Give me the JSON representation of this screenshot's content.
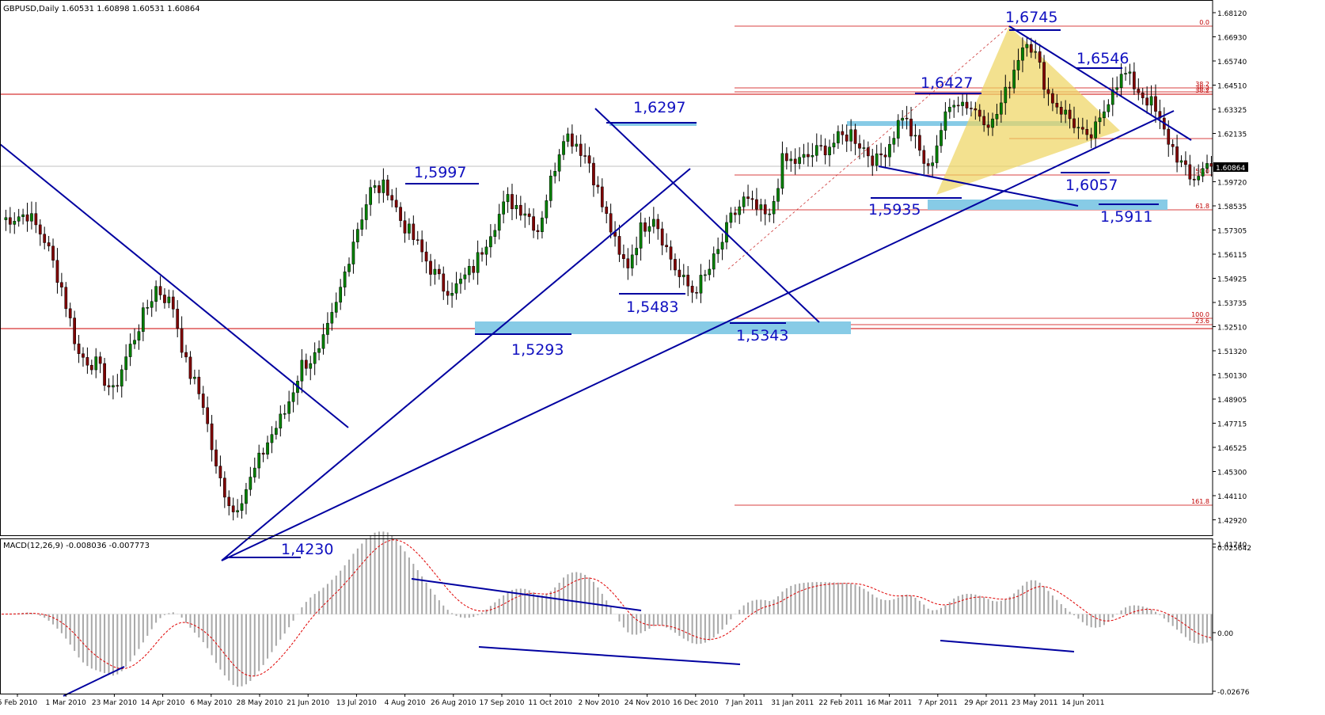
{
  "chart_data": {
    "type": "candlestick",
    "symbol_header": "GBPUSD,Daily  1.60531 1.60898 1.60531 1.60864",
    "ylim": [
      1.4115,
      1.6863
    ],
    "price_ticks": [
      "1.68120",
      "1.66930",
      "1.65740",
      "1.64510",
      "1.63325",
      "1.62135",
      "1.60864",
      "1.59720",
      "1.58535",
      "1.57305",
      "1.56115",
      "1.54925",
      "1.53735",
      "1.52510",
      "1.51320",
      "1.50130",
      "1.48905",
      "1.47715",
      "1.46525",
      "1.45300",
      "1.44110",
      "1.42920",
      "1.41740"
    ],
    "current_price": "1.60864",
    "date_labels": [
      "5 Feb 2010",
      "1 Mar 2010",
      "23 Mar 2010",
      "14 Apr 2010",
      "6 May 2010",
      "28 May 2010",
      "21 Jun 2010",
      "13 Jul 2010",
      "4 Aug 2010",
      "26 Aug 2010",
      "17 Sep 2010",
      "11 Oct 2010",
      "2 Nov 2010",
      "24 Nov 2010",
      "16 Dec 2010",
      "7 Jan 2011",
      "31 Jan 2011",
      "22 Feb 2011",
      "16 Mar 2011",
      "7 Apr 2011",
      "29 Apr 2011",
      "23 May 2011",
      "14 Jun 2011"
    ],
    "price_path": [
      [
        0,
        1.575
      ],
      [
        6,
        1.578
      ],
      [
        10,
        1.565
      ],
      [
        14,
        1.54
      ],
      [
        18,
        1.505
      ],
      [
        22,
        1.5
      ],
      [
        26,
        1.485
      ],
      [
        28,
        1.498
      ],
      [
        32,
        1.52
      ],
      [
        36,
        1.54
      ],
      [
        40,
        1.53
      ],
      [
        43,
        1.5
      ],
      [
        47,
        1.48
      ],
      [
        50,
        1.445
      ],
      [
        54,
        1.424
      ],
      [
        58,
        1.44
      ],
      [
        62,
        1.46
      ],
      [
        66,
        1.475
      ],
      [
        70,
        1.5
      ],
      [
        74,
        1.505
      ],
      [
        78,
        1.53
      ],
      [
        82,
        1.565
      ],
      [
        86,
        1.59
      ],
      [
        90,
        1.592
      ],
      [
        93,
        1.575
      ],
      [
        96,
        1.565
      ],
      [
        100,
        1.55
      ],
      [
        103,
        1.54
      ],
      [
        106,
        1.54
      ],
      [
        110,
        1.55
      ],
      [
        114,
        1.57
      ],
      [
        118,
        1.585
      ],
      [
        122,
        1.58
      ],
      [
        125,
        1.57
      ],
      [
        128,
        1.595
      ],
      [
        131,
        1.62
      ],
      [
        134,
        1.615
      ],
      [
        137,
        1.605
      ],
      [
        140,
        1.582
      ],
      [
        142,
        1.57
      ],
      [
        144,
        1.555
      ],
      [
        146,
        1.552
      ],
      [
        149,
        1.57
      ],
      [
        152,
        1.578
      ],
      [
        155,
        1.56
      ],
      [
        158,
        1.545
      ],
      [
        161,
        1.538
      ],
      [
        164,
        1.545
      ],
      [
        167,
        1.558
      ],
      [
        170,
        1.575
      ],
      [
        173,
        1.585
      ],
      [
        176,
        1.58
      ],
      [
        179,
        1.575
      ],
      [
        182,
        1.605
      ],
      [
        186,
        1.605
      ],
      [
        190,
        1.61
      ],
      [
        194,
        1.615
      ],
      [
        198,
        1.62
      ],
      [
        201,
        1.612
      ],
      [
        204,
        1.605
      ],
      [
        207,
        1.615
      ],
      [
        210,
        1.63
      ],
      [
        213,
        1.615
      ],
      [
        216,
        1.6
      ],
      [
        219,
        1.622
      ],
      [
        222,
        1.638
      ],
      [
        225,
        1.635
      ],
      [
        228,
        1.63
      ],
      [
        231,
        1.625
      ],
      [
        234,
        1.64
      ],
      [
        237,
        1.66
      ],
      [
        239,
        1.67
      ],
      [
        241,
        1.66
      ],
      [
        244,
        1.64
      ],
      [
        247,
        1.632
      ],
      [
        250,
        1.625
      ],
      [
        253,
        1.615
      ],
      [
        256,
        1.625
      ],
      [
        259,
        1.645
      ],
      [
        262,
        1.65
      ],
      [
        265,
        1.642
      ],
      [
        268,
        1.635
      ],
      [
        271,
        1.62
      ],
      [
        274,
        1.608
      ],
      [
        277,
        1.595
      ],
      [
        280,
        1.601
      ],
      [
        282,
        1.606
      ]
    ],
    "macd": {
      "label": "MACD(12,26,9) -0.008036 -0.007773",
      "y_ticks": [
        "0.025642",
        "0.00",
        "-0.02676"
      ],
      "ylim": [
        -0.0275,
        0.0262
      ]
    },
    "price_labels": [
      "1,4230",
      "1,5997",
      "1,5293",
      "1,6297",
      "1,5483",
      "1,5343",
      "1,5935",
      "1,6427",
      "1,6745",
      "1,6546",
      "1,6057",
      "1,5911"
    ],
    "fib_labels": [
      "0.0",
      "38.2",
      "38.2",
      "38.2",
      "50.0",
      "61.8",
      "100.0",
      "23.6",
      "161.8"
    ],
    "colors": {
      "bull": "#008000",
      "bear": "#800000",
      "trendline": "#0000a0",
      "fib_line": "#cc0000",
      "support_zone": "#87cbe6",
      "triangle_fill": "#eed460",
      "macd_hist": "#a8a8a8",
      "signal": "#e00000"
    }
  }
}
